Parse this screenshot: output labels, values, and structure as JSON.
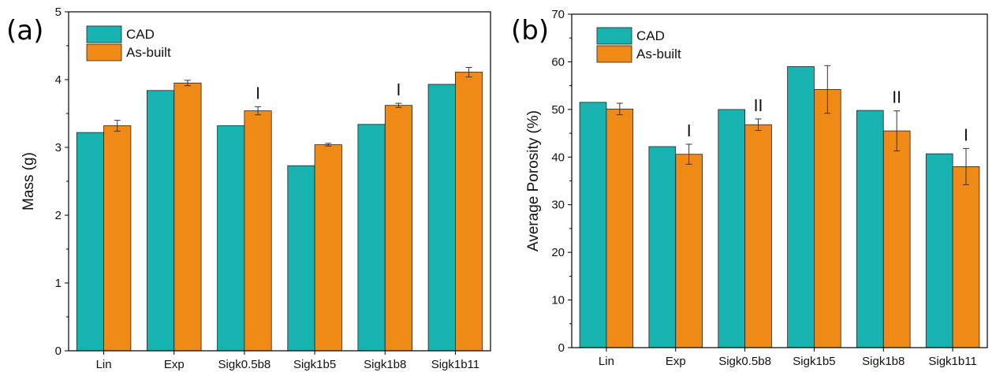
{
  "colors": {
    "cad": "#17b3b1",
    "asbuilt": "#f08a16",
    "axis": "#000000",
    "errorbar": "#333333"
  },
  "chart_data": [
    {
      "type": "bar",
      "panel_label": "(a)",
      "ylabel": "Mass (g)",
      "xlabel": "",
      "ylim": [
        0,
        5
      ],
      "yticks": [
        0,
        1,
        2,
        3,
        4,
        5
      ],
      "categories": [
        "Lin",
        "Exp",
        "Sigk0.5b8",
        "Sigk1b5",
        "Sigk1b8",
        "Sigk1b11"
      ],
      "series": [
        {
          "name": "CAD",
          "values": [
            3.22,
            3.84,
            3.32,
            2.73,
            3.34,
            3.93
          ],
          "errors": [
            0,
            0,
            0,
            0,
            0,
            0
          ]
        },
        {
          "name": "As-built",
          "values": [
            3.32,
            3.95,
            3.54,
            3.04,
            3.62,
            4.11
          ],
          "errors": [
            0.08,
            0.04,
            0.06,
            0.02,
            0.03,
            0.07
          ]
        }
      ],
      "annotations": [
        {
          "category": "Sigk0.5b8",
          "text": "I"
        },
        {
          "category": "Sigk1b8",
          "text": "I"
        }
      ],
      "legend": {
        "placement": "top-left",
        "items": [
          "CAD",
          "As-built"
        ]
      }
    },
    {
      "type": "bar",
      "panel_label": "(b)",
      "ylabel": "Average Porosity (%)",
      "xlabel": "",
      "ylim": [
        0,
        70
      ],
      "yticks": [
        0,
        10,
        20,
        30,
        40,
        50,
        60,
        70
      ],
      "categories": [
        "Lin",
        "Exp",
        "Sigk0.5b8",
        "Sigk1b5",
        "Sigk1b8",
        "Sigk1b11"
      ],
      "series": [
        {
          "name": "CAD",
          "values": [
            51.5,
            42.2,
            50.0,
            59.0,
            49.8,
            40.7
          ],
          "errors": [
            0,
            0,
            0,
            0,
            0,
            0
          ]
        },
        {
          "name": "As-built",
          "values": [
            50.1,
            40.6,
            46.8,
            54.2,
            45.5,
            38.0
          ],
          "errors": [
            1.2,
            2.1,
            1.2,
            5.0,
            4.2,
            3.8
          ]
        }
      ],
      "annotations": [
        {
          "category": "Exp",
          "text": "I"
        },
        {
          "category": "Sigk0.5b8",
          "text": "II"
        },
        {
          "category": "Sigk1b8",
          "text": "II"
        },
        {
          "category": "Sigk1b11",
          "text": "I"
        }
      ],
      "legend": {
        "placement": "top-left",
        "items": [
          "CAD",
          "As-built"
        ]
      }
    }
  ]
}
